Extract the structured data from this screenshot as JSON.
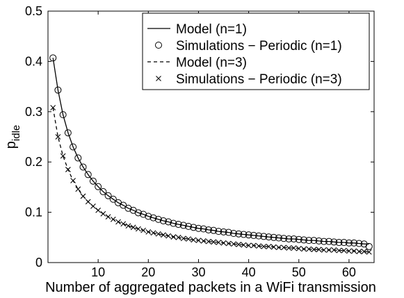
{
  "chart_data": {
    "type": "line",
    "title": "",
    "xlabel": "Number of aggregated packets in a WiFi transmission",
    "ylabel": {
      "base": "p",
      "subscript": "idle"
    },
    "xlim": [
      0,
      65
    ],
    "ylim": [
      0,
      0.5
    ],
    "xticks": [
      10,
      20,
      30,
      40,
      50,
      60
    ],
    "yticks": [
      0,
      0.1,
      0.2,
      0.3,
      0.4,
      0.5
    ],
    "ytick_labels": [
      "0",
      "0.1",
      "0.2",
      "0.3",
      "0.4",
      "0.5"
    ],
    "grid": false,
    "legend_position": "top-right",
    "series": [
      {
        "name": "Model (n=1)",
        "style": "solid-line",
        "color": "#000000",
        "formula_note_none": true,
        "x": [
          1,
          2,
          3,
          4,
          5,
          6,
          7,
          8,
          9,
          10,
          11,
          12,
          13,
          14,
          15,
          16,
          17,
          18,
          19,
          20,
          21,
          22,
          23,
          24,
          25,
          26,
          27,
          28,
          29,
          30,
          31,
          32,
          33,
          34,
          35,
          36,
          37,
          38,
          39,
          40,
          41,
          42,
          43,
          44,
          45,
          46,
          47,
          48,
          49,
          50,
          51,
          52,
          53,
          54,
          55,
          56,
          57,
          58,
          59,
          60,
          61,
          62,
          63,
          64
        ],
        "y": [
          0.407,
          0.343,
          0.294,
          0.258,
          0.23,
          0.208,
          0.19,
          0.175,
          0.162,
          0.151,
          0.141,
          0.133,
          0.126,
          0.119,
          0.114,
          0.108,
          0.104,
          0.099,
          0.096,
          0.092,
          0.089,
          0.086,
          0.083,
          0.081,
          0.078,
          0.076,
          0.074,
          0.072,
          0.07,
          0.068,
          0.067,
          0.065,
          0.064,
          0.062,
          0.061,
          0.06,
          0.058,
          0.057,
          0.056,
          0.055,
          0.054,
          0.053,
          0.052,
          0.051,
          0.05,
          0.049,
          0.048,
          0.047,
          0.047,
          0.046,
          0.045,
          0.044,
          0.044,
          0.043,
          0.042,
          0.042,
          0.041,
          0.04,
          0.04,
          0.039,
          0.039,
          0.038,
          0.037,
          0.037
        ]
      },
      {
        "name": "Simulations − Periodic (n=1)",
        "style": "circle-markers",
        "color": "#000000",
        "x": [
          1,
          2,
          3,
          4,
          5,
          6,
          7,
          8,
          9,
          10,
          11,
          12,
          13,
          14,
          15,
          16,
          17,
          18,
          19,
          20,
          21,
          22,
          23,
          24,
          25,
          26,
          27,
          28,
          29,
          30,
          31,
          32,
          33,
          34,
          35,
          36,
          37,
          38,
          39,
          40,
          41,
          42,
          43,
          44,
          45,
          46,
          47,
          48,
          49,
          50,
          51,
          52,
          53,
          54,
          55,
          56,
          57,
          58,
          59,
          60,
          61,
          62,
          63,
          64
        ],
        "y": [
          0.407,
          0.343,
          0.294,
          0.258,
          0.23,
          0.208,
          0.19,
          0.175,
          0.162,
          0.151,
          0.141,
          0.133,
          0.126,
          0.119,
          0.114,
          0.108,
          0.104,
          0.099,
          0.096,
          0.092,
          0.089,
          0.086,
          0.083,
          0.081,
          0.078,
          0.076,
          0.074,
          0.072,
          0.07,
          0.068,
          0.067,
          0.065,
          0.064,
          0.062,
          0.061,
          0.06,
          0.058,
          0.057,
          0.056,
          0.055,
          0.054,
          0.053,
          0.052,
          0.051,
          0.05,
          0.049,
          0.048,
          0.047,
          0.047,
          0.046,
          0.045,
          0.044,
          0.044,
          0.043,
          0.042,
          0.042,
          0.041,
          0.04,
          0.04,
          0.039,
          0.039,
          0.038,
          0.037,
          0.032
        ]
      },
      {
        "name": "Model (n=3)",
        "style": "dashed-line",
        "color": "#000000",
        "x": [
          1,
          2,
          3,
          4,
          5,
          6,
          7,
          8,
          9,
          10,
          11,
          12,
          13,
          14,
          15,
          16,
          17,
          18,
          19,
          20,
          21,
          22,
          23,
          24,
          25,
          26,
          27,
          28,
          29,
          30,
          31,
          32,
          33,
          34,
          35,
          36,
          37,
          38,
          39,
          40,
          41,
          42,
          43,
          44,
          45,
          46,
          47,
          48,
          49,
          50,
          51,
          52,
          53,
          54,
          55,
          56,
          57,
          58,
          59,
          60,
          61,
          62,
          63,
          64
        ],
        "y": [
          0.308,
          0.25,
          0.212,
          0.185,
          0.163,
          0.146,
          0.132,
          0.121,
          0.112,
          0.104,
          0.097,
          0.091,
          0.086,
          0.081,
          0.077,
          0.073,
          0.07,
          0.067,
          0.064,
          0.061,
          0.059,
          0.057,
          0.055,
          0.053,
          0.051,
          0.05,
          0.048,
          0.047,
          0.045,
          0.044,
          0.043,
          0.042,
          0.041,
          0.04,
          0.039,
          0.038,
          0.037,
          0.036,
          0.035,
          0.034,
          0.034,
          0.033,
          0.032,
          0.032,
          0.031,
          0.03,
          0.03,
          0.029,
          0.029,
          0.028,
          0.027,
          0.027,
          0.026,
          0.026,
          0.025,
          0.025,
          0.025,
          0.024,
          0.024,
          0.023,
          0.023,
          0.022,
          0.022,
          0.021
        ]
      },
      {
        "name": "Simulations − Periodic (n=3)",
        "style": "x-markers",
        "color": "#000000",
        "x": [
          1,
          2,
          3,
          4,
          5,
          6,
          7,
          8,
          9,
          10,
          11,
          12,
          13,
          14,
          15,
          16,
          17,
          18,
          19,
          20,
          21,
          22,
          23,
          24,
          25,
          26,
          27,
          28,
          29,
          30,
          31,
          32,
          33,
          34,
          35,
          36,
          37,
          38,
          39,
          40,
          41,
          42,
          43,
          44,
          45,
          46,
          47,
          48,
          49,
          50,
          51,
          52,
          53,
          54,
          55,
          56,
          57,
          58,
          59,
          60,
          61,
          62,
          63,
          64
        ],
        "y": [
          0.308,
          0.25,
          0.212,
          0.185,
          0.163,
          0.146,
          0.132,
          0.121,
          0.112,
          0.104,
          0.097,
          0.091,
          0.086,
          0.081,
          0.077,
          0.073,
          0.07,
          0.067,
          0.064,
          0.061,
          0.059,
          0.057,
          0.055,
          0.053,
          0.051,
          0.05,
          0.048,
          0.047,
          0.045,
          0.044,
          0.043,
          0.042,
          0.041,
          0.04,
          0.039,
          0.038,
          0.037,
          0.036,
          0.035,
          0.034,
          0.034,
          0.033,
          0.032,
          0.032,
          0.031,
          0.03,
          0.03,
          0.029,
          0.029,
          0.028,
          0.027,
          0.027,
          0.026,
          0.026,
          0.025,
          0.025,
          0.025,
          0.024,
          0.024,
          0.023,
          0.023,
          0.022,
          0.022,
          0.021
        ]
      }
    ]
  }
}
